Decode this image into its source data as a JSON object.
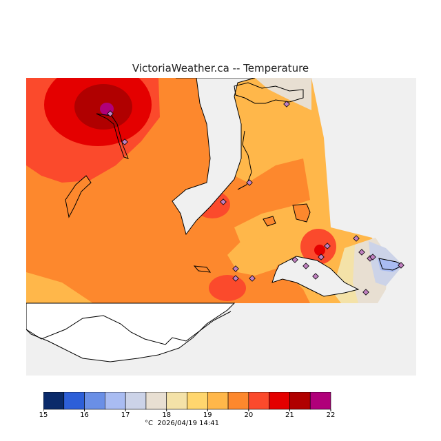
{
  "title": "VictoriaWeather.ca -- Temperature",
  "unit": "°C",
  "timestamp": "2026/04/19 14:41",
  "legend": {
    "ticks": [
      "15",
      "16",
      "17",
      "18",
      "19",
      "20",
      "21",
      "22"
    ],
    "bins": [
      {
        "from": 15.0,
        "to": 15.5,
        "color": "#0a2a6a"
      },
      {
        "from": 15.5,
        "to": 16.0,
        "color": "#2d5fd8"
      },
      {
        "from": 16.0,
        "to": 16.5,
        "color": "#6a8fe6"
      },
      {
        "from": 16.5,
        "to": 17.0,
        "color": "#a9bcf2"
      },
      {
        "from": 17.0,
        "to": 17.5,
        "color": "#ccd3e8"
      },
      {
        "from": 17.5,
        "to": 18.0,
        "color": "#e8dfd2"
      },
      {
        "from": 18.0,
        "to": 18.5,
        "color": "#f4e2a8"
      },
      {
        "from": 18.5,
        "to": 19.0,
        "color": "#ffd66e"
      },
      {
        "from": 19.0,
        "to": 19.5,
        "color": "#ffb74a"
      },
      {
        "from": 19.5,
        "to": 20.0,
        "color": "#fd882d"
      },
      {
        "from": 20.0,
        "to": 20.5,
        "color": "#fb4a2c"
      },
      {
        "from": 20.5,
        "to": 21.0,
        "color": "#e40000"
      },
      {
        "from": 21.0,
        "to": 21.5,
        "color": "#b00000"
      },
      {
        "from": 21.5,
        "to": 22.0,
        "color": "#b0007a"
      }
    ]
  },
  "colors": {
    "background": "#ffffff",
    "land_outline": "#000000",
    "no_data": "#f0f0f0",
    "station_marker": "#c080c0"
  }
}
